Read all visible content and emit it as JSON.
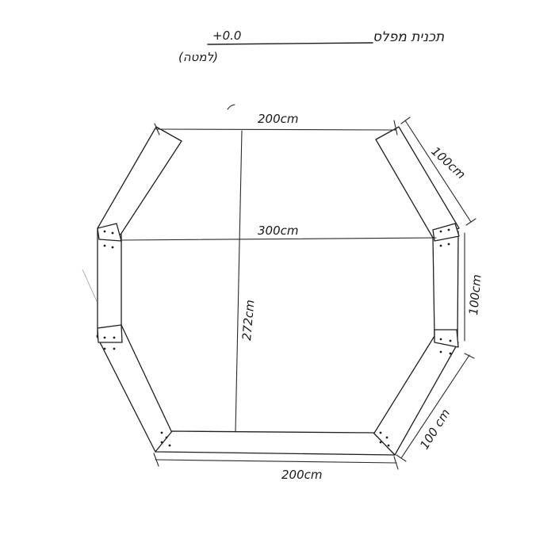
{
  "title": {
    "hebrew": "תכנית מפלס",
    "level": "+0.0",
    "subtitle": "(למטה)"
  },
  "dimensions": {
    "top_width": "200cm",
    "bottom_width": "200cm",
    "middle_width": "300cm",
    "height": "272cm",
    "side_upper_right": "100cm",
    "side_right": "100cm",
    "side_lower_right": "100 cm"
  }
}
